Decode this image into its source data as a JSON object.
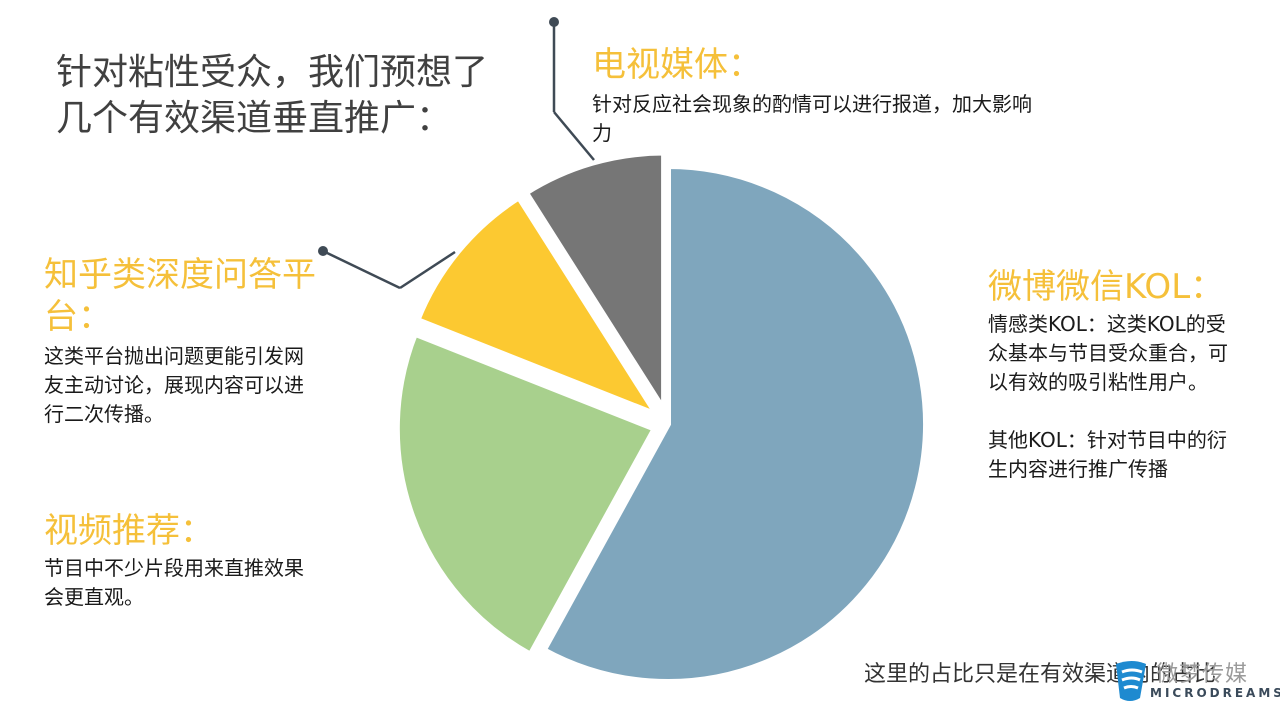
{
  "slide": {
    "title": "针对粘性受众，我们预想了几个有效渠道垂直推广：",
    "footnote": "这里的占比只是在有效渠道内的占比",
    "logo": {
      "cn": "微梦传媒",
      "en": "MICRODREAMS"
    }
  },
  "sections": {
    "tv": {
      "title": "电视媒体：",
      "body": "针对反应社会现象的酌情可以进行报道，加大影响力"
    },
    "zhihu": {
      "title": "知乎类深度问答平台：",
      "body": "这类平台抛出问题更能引发网友主动讨论，展现内容可以进行二次传播。"
    },
    "video": {
      "title": "视频推荐：",
      "body": "节目中不少片段用来直推效果会更直观。"
    },
    "weibo": {
      "title": "微博微信KOL：",
      "body1": "情感类KOL：这类KOL的受众基本与节目受众重合，可以有效的吸引粘性用户。",
      "body2": "其他KOL：针对节目中的衍生内容进行推广传播"
    }
  },
  "colors": {
    "accent_title": "#f5c03a",
    "weibo": "#7fa6bd",
    "video": "#a8d08d",
    "zhihu": "#fcc931",
    "tv": "#767676",
    "connector": "#3f4a55"
  },
  "chart_data": {
    "type": "pie",
    "title": "",
    "start_angle_deg": 0,
    "direction": "clockwise",
    "slices": [
      {
        "label": "微博微信KOL",
        "value": 58,
        "color": "#7fa6bd",
        "explode": false
      },
      {
        "label": "视频推荐",
        "value": 23,
        "color": "#a8d08d",
        "explode": true
      },
      {
        "label": "知乎类深度问答平台",
        "value": 10,
        "color": "#fcc931",
        "explode": true
      },
      {
        "label": "电视媒体",
        "value": 9,
        "color": "#767676",
        "explode": true
      }
    ]
  }
}
